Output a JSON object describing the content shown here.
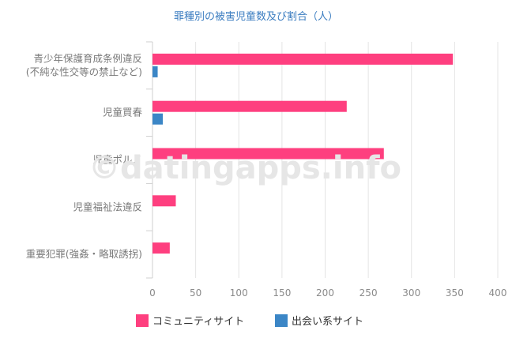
{
  "chart_data": {
    "type": "bar",
    "orientation": "horizontal",
    "title": "罪種別の被害児童数及び割合（人）",
    "categories": [
      [
        "青少年保護育成条例違反",
        "(不純な性交等の禁止など)"
      ],
      [
        "児童買春"
      ],
      [
        "児童ポルノ"
      ],
      [
        "児童福祉法違反"
      ],
      [
        "重要犯罪(強姦・略取誘拐)"
      ]
    ],
    "series": [
      {
        "name": "コミュニティサイト",
        "color": "#fe3f7f",
        "values": [
          348,
          225,
          268,
          27,
          20
        ]
      },
      {
        "name": "出会い系サイト",
        "color": "#3b86c6",
        "values": [
          6,
          12,
          0,
          0,
          0
        ]
      }
    ],
    "xlim": [
      0,
      400
    ],
    "xticks": [
      "0",
      "50",
      "100",
      "150",
      "200",
      "250",
      "300",
      "350",
      "400"
    ],
    "grid": true,
    "legend_position": "bottom",
    "watermark": "©datingapps.info"
  }
}
